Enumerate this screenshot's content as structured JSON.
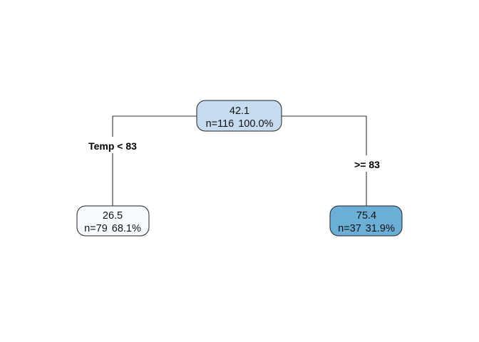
{
  "tree": {
    "root": {
      "value": "42.1",
      "n": "n=116",
      "pct": "100.0%",
      "fill": "#c6dbef"
    },
    "left": {
      "value": "26.5",
      "n": "n=79",
      "pct": "68.1%",
      "fill": "#f7fbff",
      "condition": "Temp < 83"
    },
    "right": {
      "value": "75.4",
      "n": "n=37",
      "pct": "31.9%",
      "fill": "#6baed6",
      "condition": ">= 83"
    }
  }
}
